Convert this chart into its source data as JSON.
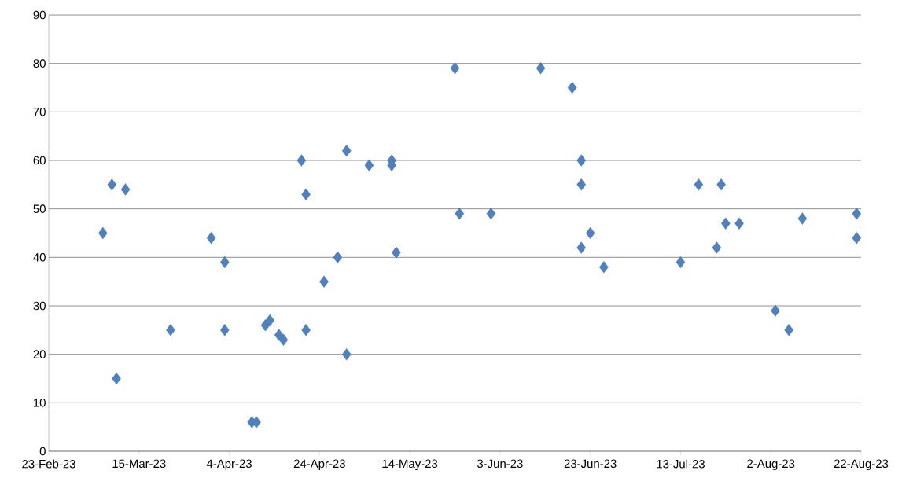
{
  "chart_data": {
    "type": "scatter",
    "marker": "diamond",
    "grid": "y",
    "x": [
      "2023-03-07",
      "2023-03-09",
      "2023-03-10",
      "2023-03-12",
      "2023-03-22",
      "2023-03-31",
      "2023-04-03",
      "2023-04-03",
      "2023-04-09",
      "2023-04-10",
      "2023-04-12",
      "2023-04-13",
      "2023-04-15",
      "2023-04-16",
      "2023-04-20",
      "2023-04-21",
      "2023-04-21",
      "2023-04-25",
      "2023-04-28",
      "2023-04-30",
      "2023-04-30",
      "2023-05-05",
      "2023-05-10",
      "2023-05-10",
      "2023-05-11",
      "2023-05-24",
      "2023-05-25",
      "2023-06-01",
      "2023-06-12",
      "2023-06-19",
      "2023-06-21",
      "2023-06-21",
      "2023-06-21",
      "2023-06-23",
      "2023-06-26",
      "2023-07-13",
      "2023-07-17",
      "2023-07-21",
      "2023-07-22",
      "2023-07-23",
      "2023-07-26",
      "2023-08-03",
      "2023-08-06",
      "2023-08-09",
      "2023-08-21",
      "2023-08-21"
    ],
    "series": [
      {
        "color": "#4f81bd",
        "values": [
          45,
          55,
          15,
          54,
          25,
          44,
          39,
          25,
          6,
          6,
          26,
          27,
          24,
          23,
          60,
          53,
          25,
          35,
          40,
          62,
          20,
          59,
          60,
          59,
          41,
          79,
          49,
          49,
          79,
          75,
          60,
          55,
          42,
          45,
          38,
          39,
          55,
          42,
          55,
          47,
          47,
          29,
          25,
          48,
          49,
          44
        ]
      }
    ],
    "xlim": [
      "2023-02-23",
      "2023-08-22"
    ],
    "xticks": [
      {
        "value": "2023-02-23",
        "label": "23-Feb-23"
      },
      {
        "value": "2023-03-15",
        "label": "15-Mar-23"
      },
      {
        "value": "2023-04-04",
        "label": "4-Apr-23"
      },
      {
        "value": "2023-04-24",
        "label": "24-Apr-23"
      },
      {
        "value": "2023-05-14",
        "label": "14-May-23"
      },
      {
        "value": "2023-06-03",
        "label": "3-Jun-23"
      },
      {
        "value": "2023-06-23",
        "label": "23-Jun-23"
      },
      {
        "value": "2023-07-13",
        "label": "13-Jul-23"
      },
      {
        "value": "2023-08-02",
        "label": "2-Aug-23"
      },
      {
        "value": "2023-08-22",
        "label": "22-Aug-23"
      }
    ],
    "ylim": [
      0,
      90
    ],
    "yticks": [
      0,
      10,
      20,
      30,
      40,
      50,
      60,
      70,
      80,
      90
    ]
  }
}
